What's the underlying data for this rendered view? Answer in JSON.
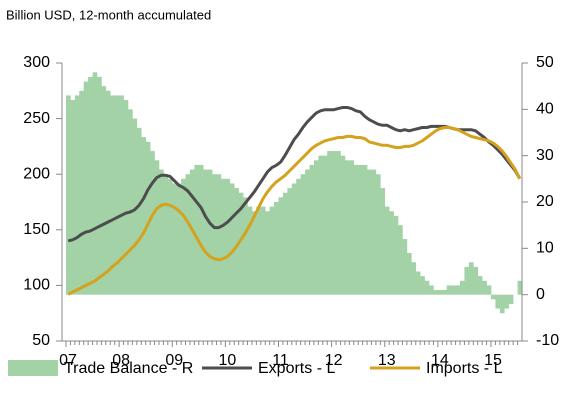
{
  "chart_data": {
    "type": "combo",
    "title": "Billion USD, 12-month accumulated",
    "categories": [
      "07",
      null,
      null,
      null,
      null,
      null,
      null,
      null,
      null,
      null,
      null,
      null,
      "08",
      null,
      null,
      null,
      null,
      null,
      null,
      null,
      null,
      null,
      null,
      null,
      "09",
      null,
      null,
      null,
      null,
      null,
      null,
      null,
      null,
      null,
      null,
      null,
      "10",
      null,
      null,
      null,
      null,
      null,
      null,
      null,
      null,
      null,
      null,
      null,
      "11",
      null,
      null,
      null,
      null,
      null,
      null,
      null,
      null,
      null,
      null,
      null,
      "12",
      null,
      null,
      null,
      null,
      null,
      null,
      null,
      null,
      null,
      null,
      null,
      "13",
      null,
      null,
      null,
      null,
      null,
      null,
      null,
      null,
      null,
      null,
      null,
      "14",
      null,
      null,
      null,
      null,
      null,
      null,
      null,
      null,
      null,
      null,
      null,
      "15",
      null,
      null,
      null,
      null,
      null,
      null
    ],
    "series": [
      {
        "name": "Trade Balance - R",
        "type": "bar",
        "axis": "y2",
        "color": "#a3d2a7",
        "values": [
          43,
          42,
          43,
          44,
          46,
          47,
          48,
          47,
          45,
          44,
          43,
          43,
          43,
          42,
          40,
          38,
          36,
          34,
          33,
          31,
          29,
          27,
          26,
          25,
          24,
          24,
          25,
          26,
          27,
          28,
          28,
          27,
          27,
          26,
          26,
          25,
          25,
          24,
          23,
          22,
          21,
          19,
          18,
          19,
          19,
          18,
          19,
          20,
          21,
          22,
          23,
          24,
          25,
          26,
          27,
          28,
          29,
          30,
          30,
          31,
          31,
          31,
          30,
          29,
          29,
          28,
          28,
          28,
          27,
          27,
          26,
          23,
          19,
          18,
          17,
          15,
          12,
          9,
          7,
          5,
          4,
          3,
          2,
          1,
          1,
          1,
          2,
          2,
          2,
          3,
          6,
          7,
          6,
          4,
          3,
          2,
          -1,
          -3,
          -4,
          -3,
          -2,
          0,
          3
        ]
      },
      {
        "name": "Exports - L",
        "type": "line",
        "color": "#4d4d4d",
        "values": [
          140,
          141,
          143,
          146,
          148,
          149,
          151,
          153,
          155,
          157,
          159,
          161,
          163,
          165,
          166,
          168,
          172,
          178,
          186,
          192,
          197,
          199,
          199,
          198,
          194,
          190,
          188,
          185,
          180,
          175,
          170,
          162,
          156,
          152,
          152,
          154,
          157,
          161,
          165,
          169,
          174,
          179,
          184,
          190,
          196,
          202,
          206,
          208,
          211,
          217,
          224,
          231,
          236,
          242,
          247,
          251,
          255,
          257,
          258,
          258,
          258,
          259,
          260,
          260,
          259,
          257,
          256,
          252,
          249,
          247,
          245,
          244,
          244,
          242,
          240,
          239,
          240,
          239,
          240,
          241,
          242,
          242,
          243,
          243,
          243,
          243,
          242,
          241,
          240,
          240,
          240,
          240,
          239,
          236,
          233,
          229,
          226,
          222,
          218,
          213,
          208,
          203,
          196
        ]
      },
      {
        "name": "Imports - L",
        "type": "line",
        "color": "#d4a21c",
        "values": [
          92,
          94,
          96,
          98,
          100,
          102,
          104,
          107,
          110,
          113,
          117,
          120,
          124,
          128,
          132,
          136,
          141,
          147,
          155,
          163,
          169,
          172,
          173,
          172,
          170,
          167,
          163,
          157,
          150,
          143,
          136,
          130,
          126,
          124,
          123,
          124,
          126,
          130,
          135,
          141,
          147,
          154,
          162,
          170,
          178,
          184,
          189,
          193,
          196,
          199,
          203,
          207,
          211,
          215,
          219,
          223,
          226,
          228,
          230,
          231,
          232,
          233,
          233,
          234,
          234,
          233,
          233,
          232,
          229,
          228,
          227,
          226,
          226,
          225,
          224,
          224,
          225,
          225,
          226,
          228,
          230,
          233,
          236,
          239,
          241,
          242,
          242,
          241,
          240,
          238,
          236,
          234,
          233,
          232,
          231,
          230,
          228,
          225,
          221,
          216,
          210,
          204,
          196
        ]
      }
    ],
    "ylim": [
      50,
      300
    ],
    "yticks": [
      50,
      100,
      150,
      200,
      250,
      300
    ],
    "y2lim": [
      -10,
      50
    ],
    "y2ticks": [
      -10,
      0,
      10,
      20,
      30,
      40,
      50
    ],
    "legend": "bottom"
  }
}
